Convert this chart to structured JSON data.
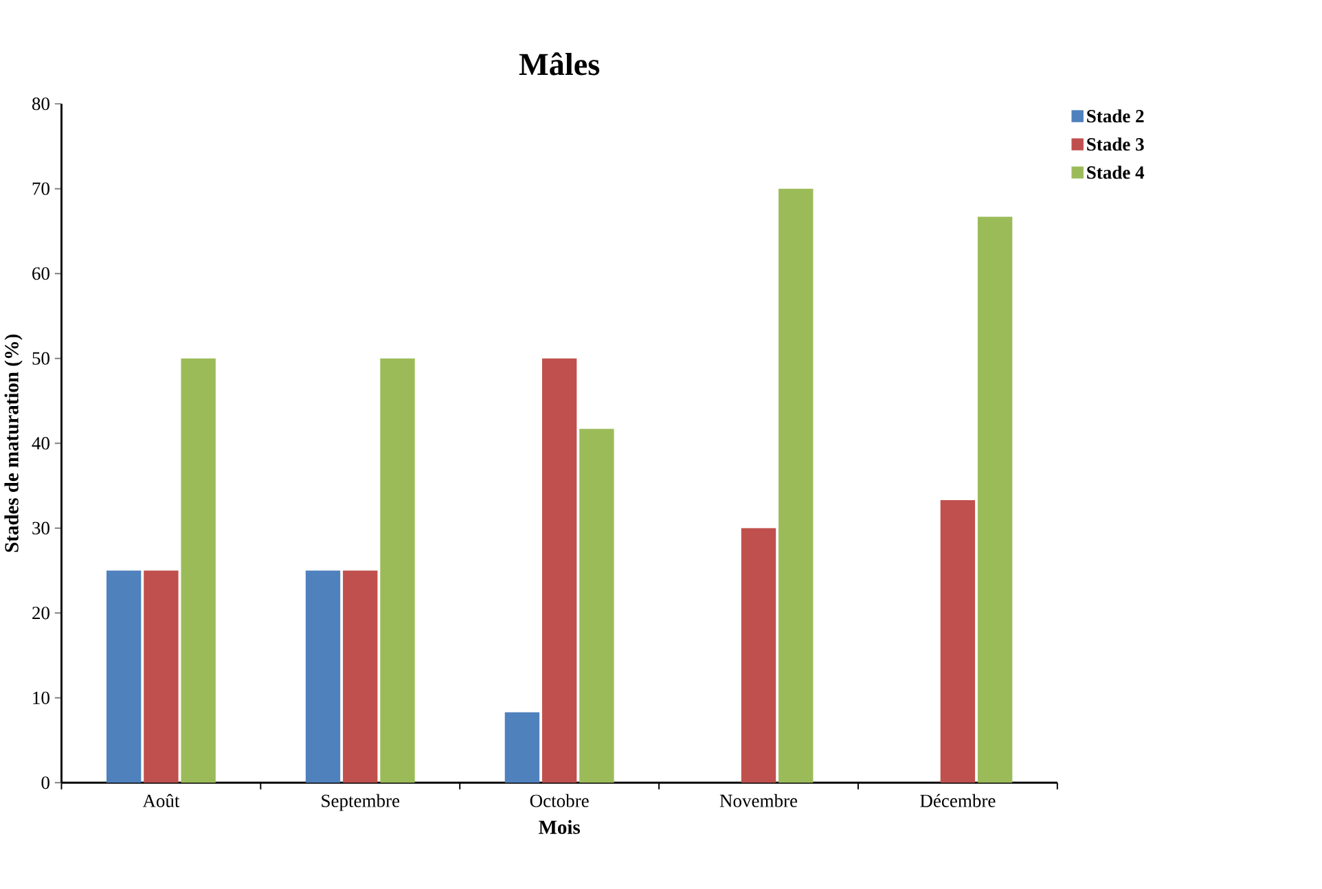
{
  "chart_data": {
    "type": "bar",
    "title": "Mâles",
    "xlabel": "Mois",
    "ylabel": "Stades de maturation (%)",
    "categories": [
      "Août",
      "Septembre",
      "Octobre",
      "Novembre",
      "Décembre"
    ],
    "series": [
      {
        "name": "Stade 2",
        "color": "#4f81bd",
        "values": [
          25,
          25,
          8.3,
          0,
          0
        ]
      },
      {
        "name": "Stade 3",
        "color": "#c0504d",
        "values": [
          25,
          25,
          50,
          30,
          33.3
        ]
      },
      {
        "name": "Stade 4",
        "color": "#9bbb59",
        "values": [
          50,
          50,
          41.7,
          70,
          66.7
        ]
      }
    ],
    "ylim": [
      0,
      80
    ],
    "yticks": [
      0,
      10,
      20,
      30,
      40,
      50,
      60,
      70,
      80
    ],
    "grid": false,
    "legend": "top right"
  }
}
